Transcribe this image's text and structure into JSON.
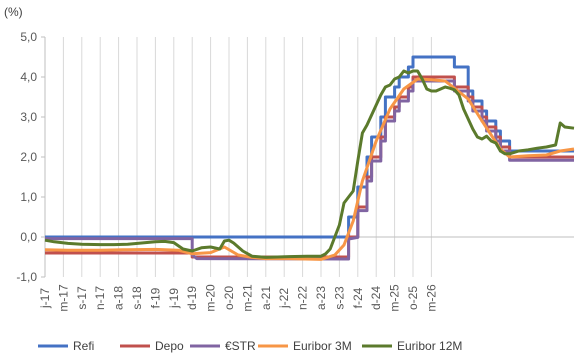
{
  "chart_data": {
    "type": "line",
    "ylabel": "(%)",
    "ylim": [
      -1,
      5
    ],
    "yticks": [
      "-1,0",
      "0,0",
      "1,0",
      "2,0",
      "3,0",
      "4,0",
      "5,0"
    ],
    "yticks_values": [
      -1,
      0,
      1,
      2,
      3,
      4,
      5
    ],
    "x_start": "2017-01",
    "x_end": "2026-08",
    "xticks": [
      {
        "date": "2017-01",
        "label": "j-17"
      },
      {
        "date": "2017-05",
        "label": "m-17"
      },
      {
        "date": "2017-09",
        "label": "s-17"
      },
      {
        "date": "2018-01",
        "label": "n-17"
      },
      {
        "date": "2018-05",
        "label": "a-18"
      },
      {
        "date": "2018-09",
        "label": "s-18"
      },
      {
        "date": "2019-01",
        "label": "f-19"
      },
      {
        "date": "2019-05",
        "label": "j-19"
      },
      {
        "date": "2019-09",
        "label": "d-19"
      },
      {
        "date": "2020-01",
        "label": "m-20"
      },
      {
        "date": "2020-05",
        "label": "o-20"
      },
      {
        "date": "2020-09",
        "label": "m-21"
      },
      {
        "date": "2021-01",
        "label": "a-21"
      },
      {
        "date": "2021-05",
        "label": "j-22"
      },
      {
        "date": "2021-09",
        "label": "n-22"
      },
      {
        "date": "2022-01",
        "label": "a-23"
      },
      {
        "date": "2022-05",
        "label": "s-23"
      },
      {
        "date": "2022-09",
        "label": "f-24"
      },
      {
        "date": "2023-01",
        "label": "d-24"
      },
      {
        "date": "2023-05",
        "label": "m-25"
      },
      {
        "date": "2023-09",
        "label": "o-25"
      },
      {
        "date": "2024-01",
        "label": "m-26"
      }
    ],
    "grid": "vertical",
    "legend_position": "bottom",
    "series": [
      {
        "name": "Refi",
        "color": "#4472C4",
        "step": true,
        "points": [
          [
            "2017-01",
            0.0
          ],
          [
            "2022-07",
            0.0
          ],
          [
            "2022-07",
            0.5
          ],
          [
            "2022-09",
            0.5
          ],
          [
            "2022-09",
            1.25
          ],
          [
            "2022-11",
            1.25
          ],
          [
            "2022-11",
            2.0
          ],
          [
            "2022-12",
            2.0
          ],
          [
            "2022-12",
            2.5
          ],
          [
            "2023-02",
            2.5
          ],
          [
            "2023-02",
            3.0
          ],
          [
            "2023-03",
            3.0
          ],
          [
            "2023-03",
            3.5
          ],
          [
            "2023-05",
            3.5
          ],
          [
            "2023-05",
            3.75
          ],
          [
            "2023-06",
            3.75
          ],
          [
            "2023-06",
            4.0
          ],
          [
            "2023-08",
            4.0
          ],
          [
            "2023-08",
            4.25
          ],
          [
            "2023-09",
            4.25
          ],
          [
            "2023-09",
            4.5
          ],
          [
            "2024-06",
            4.5
          ],
          [
            "2024-06",
            4.25
          ],
          [
            "2024-09",
            4.25
          ],
          [
            "2024-09",
            3.65
          ],
          [
            "2024-10",
            3.65
          ],
          [
            "2024-10",
            3.4
          ],
          [
            "2024-12",
            3.4
          ],
          [
            "2024-12",
            3.15
          ],
          [
            "2025-01",
            3.15
          ],
          [
            "2025-01",
            2.9
          ],
          [
            "2025-03",
            2.9
          ],
          [
            "2025-03",
            2.65
          ],
          [
            "2025-04",
            2.65
          ],
          [
            "2025-04",
            2.4
          ],
          [
            "2025-06",
            2.4
          ],
          [
            "2025-06",
            2.15
          ],
          [
            "2026-08",
            2.15
          ]
        ]
      },
      {
        "name": "Depo",
        "color": "#C0504D",
        "step": true,
        "points": [
          [
            "2017-01",
            -0.4
          ],
          [
            "2019-09",
            -0.4
          ],
          [
            "2019-09",
            -0.5
          ],
          [
            "2022-07",
            -0.5
          ],
          [
            "2022-07",
            0.0
          ],
          [
            "2022-09",
            0.0
          ],
          [
            "2022-09",
            0.75
          ],
          [
            "2022-11",
            0.75
          ],
          [
            "2022-11",
            1.5
          ],
          [
            "2022-12",
            1.5
          ],
          [
            "2022-12",
            2.0
          ],
          [
            "2023-02",
            2.0
          ],
          [
            "2023-02",
            2.5
          ],
          [
            "2023-03",
            2.5
          ],
          [
            "2023-03",
            3.0
          ],
          [
            "2023-05",
            3.0
          ],
          [
            "2023-05",
            3.25
          ],
          [
            "2023-06",
            3.25
          ],
          [
            "2023-06",
            3.5
          ],
          [
            "2023-08",
            3.5
          ],
          [
            "2023-08",
            3.75
          ],
          [
            "2023-09",
            3.75
          ],
          [
            "2023-09",
            4.0
          ],
          [
            "2024-06",
            4.0
          ],
          [
            "2024-06",
            3.75
          ],
          [
            "2024-09",
            3.75
          ],
          [
            "2024-09",
            3.5
          ],
          [
            "2024-10",
            3.5
          ],
          [
            "2024-10",
            3.25
          ],
          [
            "2024-12",
            3.25
          ],
          [
            "2024-12",
            3.0
          ],
          [
            "2025-01",
            3.0
          ],
          [
            "2025-01",
            2.75
          ],
          [
            "2025-03",
            2.75
          ],
          [
            "2025-03",
            2.5
          ],
          [
            "2025-04",
            2.5
          ],
          [
            "2025-04",
            2.25
          ],
          [
            "2025-06",
            2.25
          ],
          [
            "2025-06",
            2.0
          ],
          [
            "2026-08",
            2.0
          ]
        ]
      },
      {
        "name": "€STR",
        "color": "#8064A2",
        "step": false,
        "points": [
          [
            "2017-01",
            -0.04
          ],
          [
            "2019-09",
            -0.04
          ],
          [
            "2019-09",
            -0.45
          ],
          [
            "2019-10",
            -0.54
          ],
          [
            "2022-07",
            -0.55
          ],
          [
            "2022-07",
            -0.05
          ],
          [
            "2022-09",
            -0.01
          ],
          [
            "2022-09",
            0.66
          ],
          [
            "2022-11",
            0.66
          ],
          [
            "2022-11",
            1.4
          ],
          [
            "2022-12",
            1.4
          ],
          [
            "2022-12",
            1.9
          ],
          [
            "2023-02",
            1.9
          ],
          [
            "2023-02",
            2.4
          ],
          [
            "2023-03",
            2.4
          ],
          [
            "2023-03",
            2.9
          ],
          [
            "2023-05",
            2.9
          ],
          [
            "2023-05",
            3.15
          ],
          [
            "2023-06",
            3.15
          ],
          [
            "2023-06",
            3.4
          ],
          [
            "2023-08",
            3.4
          ],
          [
            "2023-08",
            3.65
          ],
          [
            "2023-09",
            3.65
          ],
          [
            "2023-09",
            3.9
          ],
          [
            "2024-06",
            3.9
          ],
          [
            "2024-06",
            3.65
          ],
          [
            "2024-09",
            3.65
          ],
          [
            "2024-09",
            3.4
          ],
          [
            "2024-10",
            3.4
          ],
          [
            "2024-10",
            3.15
          ],
          [
            "2024-12",
            3.15
          ],
          [
            "2024-12",
            2.9
          ],
          [
            "2025-01",
            2.9
          ],
          [
            "2025-01",
            2.65
          ],
          [
            "2025-03",
            2.65
          ],
          [
            "2025-03",
            2.4
          ],
          [
            "2025-04",
            2.4
          ],
          [
            "2025-04",
            2.15
          ],
          [
            "2025-06",
            2.15
          ],
          [
            "2025-06",
            1.92
          ],
          [
            "2026-08",
            1.92
          ]
        ]
      },
      {
        "name": "Euribor 3M",
        "color": "#F79646",
        "step": false,
        "points": [
          [
            "2017-01",
            -0.32
          ],
          [
            "2017-06",
            -0.33
          ],
          [
            "2018-01",
            -0.33
          ],
          [
            "2018-06",
            -0.32
          ],
          [
            "2019-01",
            -0.31
          ],
          [
            "2019-06",
            -0.33
          ],
          [
            "2019-09",
            -0.42
          ],
          [
            "2020-01",
            -0.39
          ],
          [
            "2020-04",
            -0.25
          ],
          [
            "2020-07",
            -0.45
          ],
          [
            "2020-10",
            -0.51
          ],
          [
            "2021-01",
            -0.54
          ],
          [
            "2021-06",
            -0.54
          ],
          [
            "2022-01",
            -0.56
          ],
          [
            "2022-04",
            -0.45
          ],
          [
            "2022-06",
            -0.2
          ],
          [
            "2022-08",
            0.4
          ],
          [
            "2022-10",
            1.4
          ],
          [
            "2023-01",
            2.4
          ],
          [
            "2023-04",
            3.2
          ],
          [
            "2023-07",
            3.7
          ],
          [
            "2023-10",
            3.95
          ],
          [
            "2024-01",
            3.93
          ],
          [
            "2024-04",
            3.9
          ],
          [
            "2024-06",
            3.72
          ],
          [
            "2024-09",
            3.45
          ],
          [
            "2024-12",
            2.9
          ],
          [
            "2025-02",
            2.55
          ],
          [
            "2025-04",
            2.2
          ],
          [
            "2025-06",
            2.0
          ],
          [
            "2025-10",
            2.03
          ],
          [
            "2026-02",
            2.05
          ],
          [
            "2026-05",
            2.15
          ],
          [
            "2026-08",
            2.2
          ]
        ]
      },
      {
        "name": "Euribor 12M",
        "color": "#5B7A2C",
        "step": false,
        "points": [
          [
            "2017-01",
            -0.08
          ],
          [
            "2017-03",
            -0.12
          ],
          [
            "2017-06",
            -0.16
          ],
          [
            "2017-09",
            -0.18
          ],
          [
            "2018-01",
            -0.19
          ],
          [
            "2018-04",
            -0.19
          ],
          [
            "2018-07",
            -0.18
          ],
          [
            "2018-10",
            -0.15
          ],
          [
            "2019-01",
            -0.12
          ],
          [
            "2019-03",
            -0.11
          ],
          [
            "2019-05",
            -0.14
          ],
          [
            "2019-07",
            -0.3
          ],
          [
            "2019-09",
            -0.35
          ],
          [
            "2019-11",
            -0.27
          ],
          [
            "2020-01",
            -0.25
          ],
          [
            "2020-03",
            -0.3
          ],
          [
            "2020-04",
            -0.1
          ],
          [
            "2020-05",
            -0.08
          ],
          [
            "2020-06",
            -0.15
          ],
          [
            "2020-08",
            -0.35
          ],
          [
            "2020-10",
            -0.48
          ],
          [
            "2021-01",
            -0.51
          ],
          [
            "2021-06",
            -0.49
          ],
          [
            "2021-10",
            -0.48
          ],
          [
            "2022-01",
            -0.48
          ],
          [
            "2022-02",
            -0.42
          ],
          [
            "2022-03",
            -0.3
          ],
          [
            "2022-04",
            0.0
          ],
          [
            "2022-05",
            0.3
          ],
          [
            "2022-06",
            0.85
          ],
          [
            "2022-07",
            1.0
          ],
          [
            "2022-08",
            1.15
          ],
          [
            "2022-09",
            1.9
          ],
          [
            "2022-10",
            2.6
          ],
          [
            "2022-11",
            2.8
          ],
          [
            "2023-01",
            3.3
          ],
          [
            "2023-02",
            3.55
          ],
          [
            "2023-03",
            3.75
          ],
          [
            "2023-04",
            3.8
          ],
          [
            "2023-05",
            3.95
          ],
          [
            "2023-06",
            4.0
          ],
          [
            "2023-07",
            4.15
          ],
          [
            "2023-08",
            4.1
          ],
          [
            "2023-09",
            4.15
          ],
          [
            "2023-10",
            4.15
          ],
          [
            "2023-11",
            3.95
          ],
          [
            "2023-12",
            3.7
          ],
          [
            "2024-01",
            3.65
          ],
          [
            "2024-02",
            3.65
          ],
          [
            "2024-03",
            3.7
          ],
          [
            "2024-04",
            3.75
          ],
          [
            "2024-05",
            3.72
          ],
          [
            "2024-06",
            3.68
          ],
          [
            "2024-07",
            3.55
          ],
          [
            "2024-08",
            3.2
          ],
          [
            "2024-09",
            2.95
          ],
          [
            "2024-10",
            2.7
          ],
          [
            "2024-11",
            2.5
          ],
          [
            "2024-12",
            2.45
          ],
          [
            "2025-01",
            2.52
          ],
          [
            "2025-02",
            2.4
          ],
          [
            "2025-03",
            2.35
          ],
          [
            "2025-04",
            2.15
          ],
          [
            "2025-05",
            2.08
          ],
          [
            "2025-06",
            2.08
          ],
          [
            "2025-08",
            2.15
          ],
          [
            "2025-10",
            2.18
          ],
          [
            "2025-12",
            2.22
          ],
          [
            "2026-02",
            2.25
          ],
          [
            "2026-04",
            2.3
          ],
          [
            "2026-05",
            2.85
          ],
          [
            "2026-06",
            2.75
          ],
          [
            "2026-08",
            2.72
          ]
        ]
      }
    ]
  }
}
